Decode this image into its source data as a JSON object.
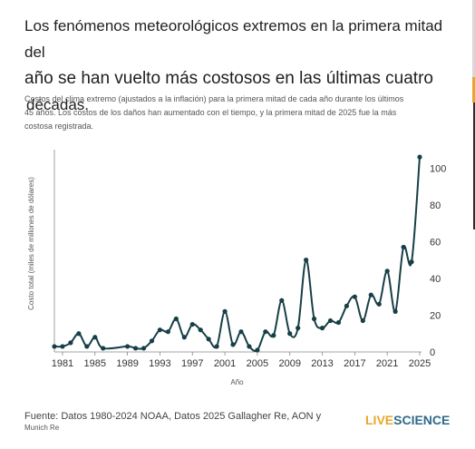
{
  "header": {
    "title_line1": "Los fenómenos meteorológicos extremos en la primera mitad del",
    "title_line2": "año se han vuelto más costosos en las últimas cuatro",
    "title_line3": "décadas.",
    "subtitle_line1": "Costos del clima extremo (ajustados a la inflación) para la primera mitad de cada año durante los últimos",
    "subtitle_line2": "45 años. Los costos de los daños han aumentado con el tiempo, y la primera mitad de 2025 fue la más",
    "subtitle_line3": "costosa registrada."
  },
  "footer": {
    "source_line1": "Fuente: Datos 1980-2024 NOAA, Datos 2025 Gallagher Re, AON y",
    "source_line2": "Munich Re",
    "logo_part1": "LIVE",
    "logo_part2": "SCIENCE"
  },
  "colors": {
    "line": "#173f47",
    "axis": "#888888",
    "grid": "#e6e6e6",
    "logo_live": "#e9a72a",
    "logo_science": "#2d6b8a"
  },
  "chart_data": {
    "type": "line",
    "xlabel": "Año",
    "ylabel": "Costo total (miles de millones de dólares)",
    "xlim": [
      1980,
      2025
    ],
    "ylim": [
      0,
      110
    ],
    "x_ticks": [
      "1981",
      "1985",
      "1989",
      "1993",
      "1997",
      "2001",
      "2005",
      "2009",
      "2013",
      "2017",
      "2021",
      "2025"
    ],
    "y_ticks": [
      "0",
      "20",
      "40",
      "60",
      "80",
      "100"
    ],
    "grid": false,
    "series": [
      {
        "x": [
          1980,
          1981,
          1982,
          1983,
          1984,
          1985,
          1986,
          1989,
          1990,
          1991,
          1992,
          1993,
          1994,
          1995,
          1996,
          1997,
          1998,
          1999,
          2000,
          2001,
          2002,
          2003,
          2004,
          2005,
          2006,
          2007,
          2008,
          2009,
          2010,
          2011,
          2012,
          2013,
          2014,
          2015,
          2016,
          2017,
          2018,
          2019,
          2020,
          2021,
          2022,
          2023,
          2024,
          2025
        ],
        "values": [
          3,
          3,
          5,
          10,
          3,
          8,
          2,
          3,
          2,
          2,
          6,
          12,
          11,
          18,
          8,
          15,
          12,
          7,
          3,
          22,
          4,
          11,
          3,
          1,
          11,
          9,
          28,
          10,
          13,
          50,
          18,
          13,
          17,
          16,
          25,
          30,
          17,
          31,
          26,
          44,
          22,
          57,
          49,
          106
        ]
      }
    ]
  }
}
